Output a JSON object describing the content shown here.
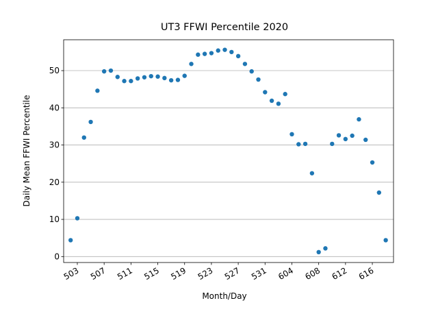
{
  "chart_data": {
    "type": "scatter",
    "title": "UT3 FFWI Percentile 2020",
    "x_label": "Month/Day",
    "y_label": "Daily Mean FFWI Percentile",
    "categories": [
      null,
      "503",
      null,
      null,
      null,
      "507",
      null,
      null,
      null,
      "511",
      null,
      null,
      null,
      "515",
      null,
      null,
      null,
      "519",
      null,
      null,
      null,
      "523",
      null,
      null,
      null,
      "527",
      null,
      null,
      null,
      "531",
      null,
      null,
      null,
      "604",
      null,
      null,
      null,
      "608",
      null,
      null,
      null,
      "612",
      null,
      null,
      null,
      "616",
      null,
      null
    ],
    "values": [
      4.4,
      10.3,
      32,
      36.2,
      44.6,
      49.8,
      50,
      48.3,
      47.2,
      47.2,
      47.9,
      48.2,
      48.5,
      48.4,
      48,
      47.4,
      47.5,
      48.6,
      51.8,
      54.3,
      54.5,
      54.7,
      55.4,
      55.6,
      55,
      53.9,
      51.8,
      49.8,
      47.6,
      44.2,
      41.9,
      41.1,
      43.7,
      32.9,
      30.2,
      30.3,
      22.4,
      1.2,
      2.2,
      30.3,
      32.6,
      31.6,
      32.5,
      36.9,
      31.4,
      25.3,
      17.2,
      4.4
    ],
    "color": "#1f77b4",
    "ylim": [
      -1.6,
      58.3
    ],
    "yticks": [
      0,
      10,
      20,
      30,
      40,
      50
    ],
    "grid": true
  }
}
